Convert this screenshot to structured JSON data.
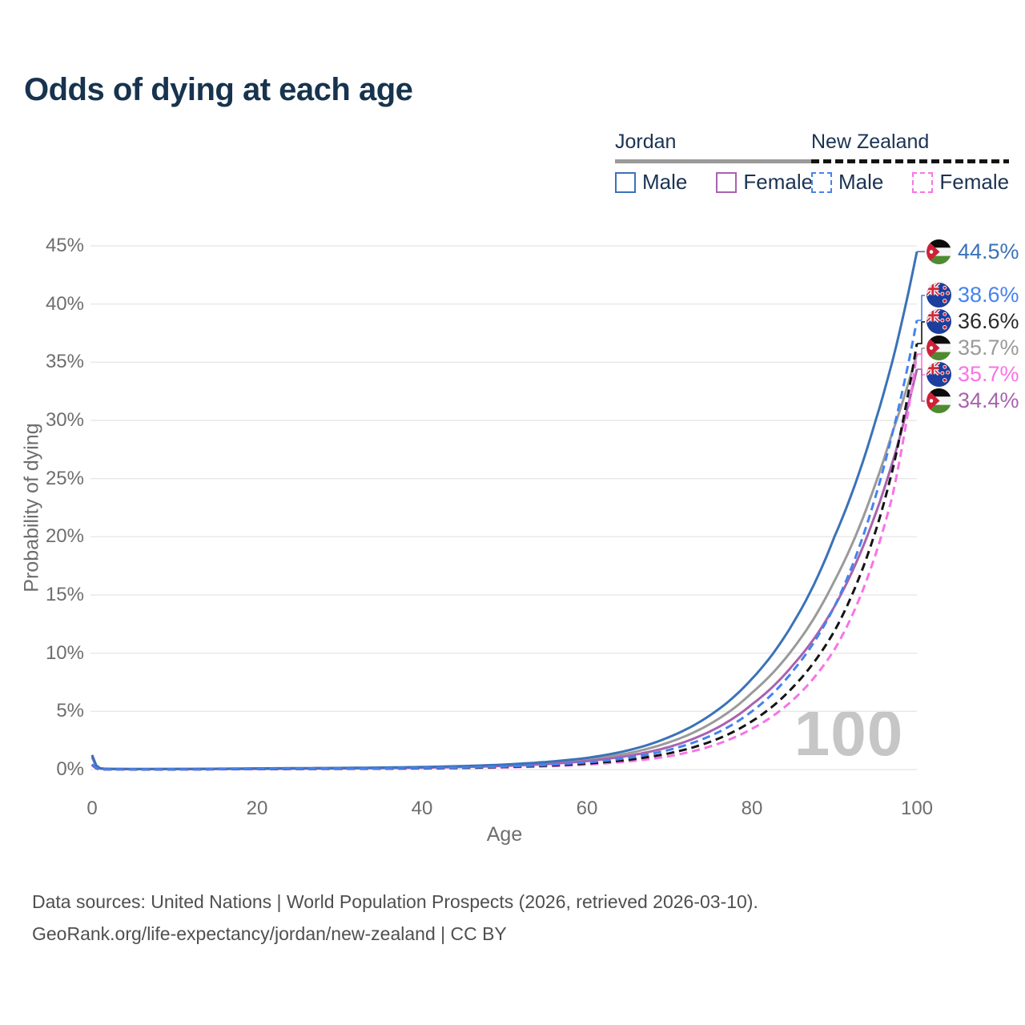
{
  "header": {
    "title": "Odds of dying at each age"
  },
  "legend": {
    "groups": [
      {
        "title": "Jordan",
        "line_style": "solid",
        "line_color": "#9a9a9a",
        "items": [
          {
            "label": "Male",
            "swatch_style": "solid",
            "color": "#3b72b8"
          },
          {
            "label": "Female",
            "swatch_style": "solid",
            "color": "#a863ae"
          }
        ]
      },
      {
        "title": "New Zealand",
        "line_style": "dashed",
        "line_color": "#141414",
        "items": [
          {
            "label": "Male",
            "swatch_style": "dashed",
            "color": "#4583ef"
          },
          {
            "label": "Female",
            "swatch_style": "dashed",
            "color": "#f973e6"
          }
        ]
      }
    ]
  },
  "chart_data": {
    "type": "line",
    "title": "Odds of dying at each age",
    "xlabel": "Age",
    "ylabel": "Probability of dying",
    "xlim": [
      0,
      100
    ],
    "ylim": [
      0,
      45
    ],
    "x_ticks": [
      0,
      20,
      40,
      60,
      80,
      100
    ],
    "y_ticks": [
      "0%",
      "5%",
      "10%",
      "15%",
      "20%",
      "25%",
      "30%",
      "35%",
      "40%",
      "45%"
    ],
    "grid": "horizontal",
    "legend_position": "top-right",
    "watermark": "100",
    "ages": [
      0,
      1,
      2,
      5,
      10,
      15,
      20,
      25,
      30,
      35,
      40,
      45,
      50,
      55,
      60,
      65,
      70,
      75,
      80,
      85,
      90,
      95,
      97,
      100
    ],
    "series": [
      {
        "id": "jordan-total",
        "name": "Jordan (both sexes)",
        "country": "Jordan",
        "style": "solid",
        "color": "#9a9a9a",
        "end_value_label": "35.7%",
        "values": [
          1.15,
          0.09,
          0.055,
          0.04,
          0.045,
          0.06,
          0.08,
          0.1,
          0.12,
          0.15,
          0.19,
          0.26,
          0.37,
          0.56,
          0.86,
          1.4,
          2.35,
          3.95,
          6.6,
          10.4,
          16.2,
          24.6,
          28.9,
          35.7
        ]
      },
      {
        "id": "jordan-female",
        "name": "Jordan Female",
        "country": "Jordan",
        "style": "solid",
        "color": "#a863ae",
        "end_value_label": "34.4%",
        "values": [
          1.05,
          0.08,
          0.05,
          0.035,
          0.04,
          0.05,
          0.06,
          0.075,
          0.095,
          0.125,
          0.16,
          0.22,
          0.31,
          0.47,
          0.73,
          1.18,
          1.95,
          3.3,
          5.6,
          9.0,
          14.0,
          22.0,
          26.3,
          34.4
        ]
      },
      {
        "id": "jordan-male",
        "name": "Jordan Male",
        "country": "Jordan",
        "style": "solid",
        "color": "#3b72b8",
        "end_value_label": "44.5%",
        "values": [
          1.25,
          0.1,
          0.06,
          0.045,
          0.05,
          0.07,
          0.1,
          0.12,
          0.14,
          0.17,
          0.22,
          0.3,
          0.43,
          0.65,
          1.0,
          1.65,
          2.8,
          4.7,
          7.8,
          12.6,
          20.0,
          30.0,
          35.0,
          44.5
        ]
      },
      {
        "id": "nz-female",
        "name": "New Zealand Female",
        "country": "New Zealand",
        "style": "dashed",
        "color": "#f973e6",
        "end_value_label": "35.7%",
        "values": [
          0.38,
          0.028,
          0.016,
          0.009,
          0.009,
          0.022,
          0.04,
          0.045,
          0.055,
          0.07,
          0.09,
          0.13,
          0.185,
          0.28,
          0.43,
          0.7,
          1.15,
          2.0,
          3.5,
          6.0,
          10.3,
          18.5,
          23.4,
          35.7
        ]
      },
      {
        "id": "nz-total",
        "name": "New Zealand (both sexes)",
        "country": "New Zealand",
        "style": "dashed",
        "color": "#141414",
        "end_value_label": "36.6%",
        "values": [
          0.42,
          0.03,
          0.018,
          0.01,
          0.01,
          0.03,
          0.055,
          0.06,
          0.07,
          0.085,
          0.11,
          0.15,
          0.22,
          0.33,
          0.52,
          0.84,
          1.4,
          2.4,
          4.15,
          7.1,
          11.9,
          20.5,
          25.6,
          36.6
        ]
      },
      {
        "id": "nz-male",
        "name": "New Zealand Male",
        "country": "New Zealand",
        "style": "dashed",
        "color": "#4583ef",
        "end_value_label": "38.6%",
        "values": [
          0.46,
          0.035,
          0.02,
          0.012,
          0.012,
          0.035,
          0.07,
          0.08,
          0.085,
          0.1,
          0.13,
          0.18,
          0.26,
          0.39,
          0.62,
          1.0,
          1.7,
          2.9,
          5.0,
          8.5,
          14.0,
          23.5,
          28.8,
          38.6
        ]
      }
    ],
    "end_labels": [
      {
        "value": "44.5%",
        "series": "jordan-male",
        "flag": "jordan",
        "color": "#3b72b8"
      },
      {
        "value": "38.6%",
        "series": "nz-male",
        "flag": "new-zealand",
        "color": "#4583ef"
      },
      {
        "value": "36.6%",
        "series": "nz-total",
        "flag": "new-zealand",
        "color": "#2a2a2a"
      },
      {
        "value": "35.7%",
        "series": "jordan-total",
        "flag": "jordan",
        "color": "#9a9a9a"
      },
      {
        "value": "35.7%",
        "series": "nz-female",
        "flag": "new-zealand",
        "color": "#f973e6"
      },
      {
        "value": "34.4%",
        "series": "jordan-female",
        "flag": "jordan",
        "color": "#a863ae"
      }
    ]
  },
  "footer": {
    "line1": "Data sources: United Nations | World Population Prospects (2026, retrieved 2026-03-10).",
    "line2": "GeoRank.org/life-expectancy/jordan/new-zealand | CC BY"
  }
}
